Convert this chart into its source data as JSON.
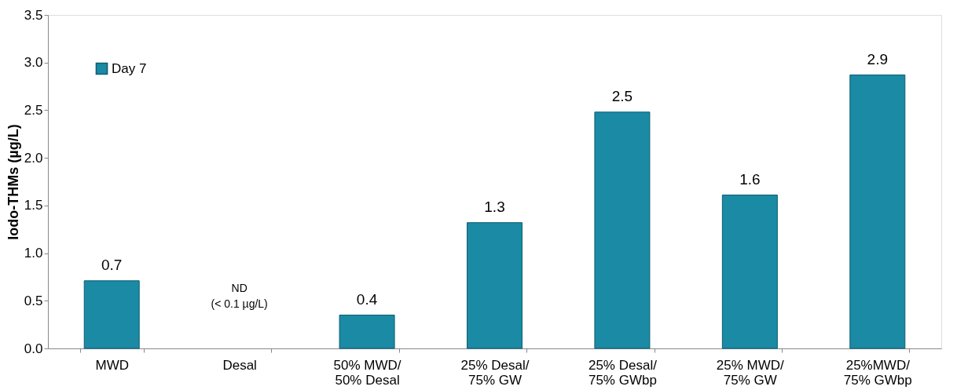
{
  "chart_data": {
    "type": "bar",
    "ylabel": "Iodo-THMs (µg/L)",
    "categories": [
      "MWD",
      "Desal",
      "50% MWD/\n50% Desal",
      "25% Desal/\n75% GW",
      "25% Desal/\n75% GWbp",
      "25% MWD/\n75% GW",
      "25%MWD/\n75% GWbp"
    ],
    "series": [
      {
        "name": "Day 7",
        "color": "#1a8aa5",
        "values": [
          0.71,
          null,
          0.35,
          1.32,
          2.48,
          1.61,
          2.87
        ],
        "value_labels": [
          "0.7",
          null,
          "0.4",
          "1.3",
          "2.5",
          "1.6",
          "2.9"
        ]
      }
    ],
    "ylim": [
      0,
      3.5
    ],
    "yticks": [
      {
        "value": 0,
        "label": "0.0"
      },
      {
        "value": 0.5,
        "label": "0.5"
      },
      {
        "value": 1,
        "label": "1.0"
      },
      {
        "value": 1.5,
        "label": "1.5"
      },
      {
        "value": 2,
        "label": "2.0"
      },
      {
        "value": 2.5,
        "label": "2.5"
      },
      {
        "value": 3,
        "label": "3.0"
      },
      {
        "value": 3.5,
        "label": "3.5"
      }
    ],
    "annotations": [
      "ND\n(< 0.1 µg/L)"
    ],
    "legend": "top left",
    "grid": false
  }
}
